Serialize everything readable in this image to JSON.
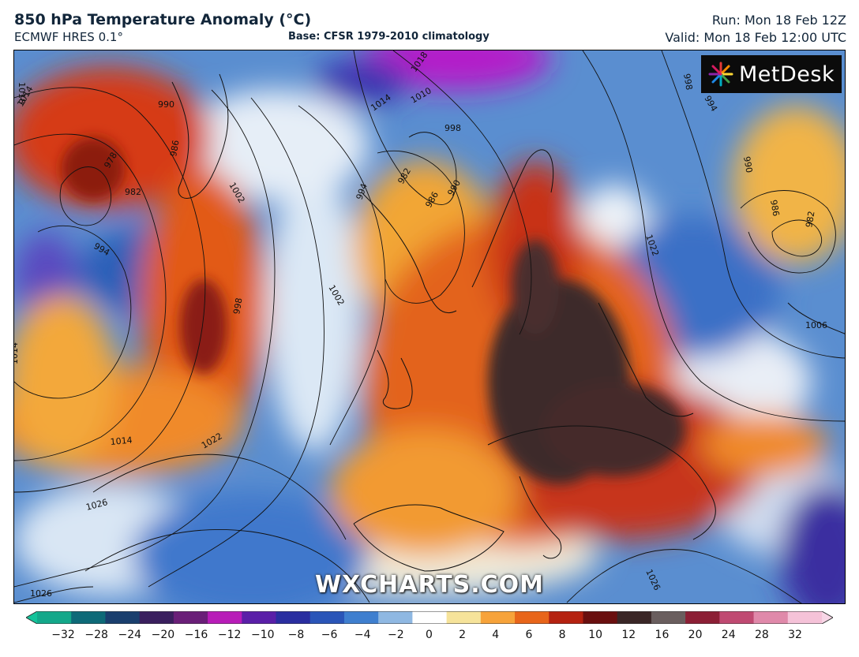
{
  "header": {
    "title": "850 hPa Temperature Anomaly (°C)",
    "model": "ECMWF HRES 0.1°",
    "base": "Base: CFSR 1979-2010 climatology",
    "run": "Run: Mon 18 Feb 12Z",
    "valid": "Valid: Mon 18 Feb 12:00 UTC"
  },
  "logo": {
    "text": "MetDesk",
    "icon": "metdesk-starburst-icon"
  },
  "watermark": "WXCHARTS.COM",
  "colorbar": {
    "ticks": [
      "−32",
      "−28",
      "−24",
      "−20",
      "−16",
      "−12",
      "−10",
      "−8",
      "−6",
      "−4",
      "−2",
      "0",
      "2",
      "4",
      "6",
      "8",
      "10",
      "12",
      "16",
      "20",
      "24",
      "28",
      "32"
    ],
    "colors": [
      "#13a88a",
      "#0e6a78",
      "#1a3f6e",
      "#3a1f5e",
      "#6a1f78",
      "#b81cb8",
      "#5a1fa8",
      "#2a2ea0",
      "#2a55b8",
      "#3f7fcf",
      "#8fb8e2",
      "#ffffff",
      "#f6e39a",
      "#f7a33a",
      "#e8651a",
      "#b52210",
      "#6a0f0f",
      "#3a2626",
      "#6a5e5e",
      "#8c1f35",
      "#c04a72",
      "#e089aa",
      "#f5c2d8"
    ]
  },
  "isobar_labels": [
    "1018",
    "1014",
    "990",
    "978",
    "986",
    "982",
    "994",
    "1002",
    "998",
    "1014",
    "1010",
    "998",
    "1018",
    "994",
    "982",
    "986",
    "990",
    "1002",
    "1022",
    "998",
    "994",
    "990",
    "986",
    "982",
    "1006",
    "1014",
    "1022",
    "1014",
    "1026",
    "1026",
    "1026"
  ],
  "colors": {
    "title": "#12263a",
    "frame": "#000000"
  }
}
